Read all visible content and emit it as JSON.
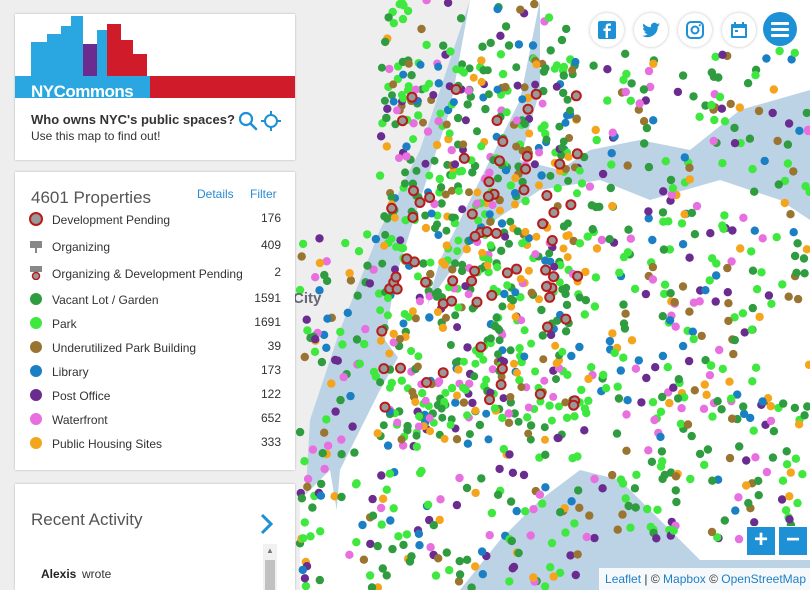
{
  "header": {
    "logo_text": "NYCommons",
    "tagline": "Who owns NYC's public spaces?",
    "subtagline": "Use this map to find out!"
  },
  "map": {
    "place_label": "City",
    "colors": {
      "water": "#bcd3e6",
      "land": "#ffffff",
      "land_dark": "#efefef",
      "vacant_lot": "#2e9c3f",
      "park": "#3ee83e",
      "underutilized": "#9a7431",
      "library": "#1a7fc3",
      "post_office": "#6b2c8f",
      "waterfront": "#e76fe0",
      "public_housing": "#f4a51c",
      "development_pending": "#b71c1c"
    }
  },
  "properties": {
    "title": "4601 Properties",
    "details_label": "Details",
    "filter_label": "Filter",
    "legend": [
      {
        "label": "Development Pending",
        "count": "176",
        "icon": "development-pending-icon",
        "color": "#b71c1c"
      },
      {
        "label": "Organizing",
        "count": "409",
        "icon": "organizing-sign-icon",
        "color": "#888888"
      },
      {
        "label": "Organizing & Development Pending",
        "count": "2",
        "icon": "organizing-development-icon",
        "color": "#b71c1c"
      },
      {
        "label": "Vacant Lot / Garden",
        "count": "1591",
        "icon": "vacant-lot-dot-icon",
        "color": "#2e9c3f"
      },
      {
        "label": "Park",
        "count": "1691",
        "icon": "park-dot-icon",
        "color": "#3ee83e"
      },
      {
        "label": "Underutilized Park Building",
        "count": "39",
        "icon": "underutilized-park-building-dot-icon",
        "color": "#9a7431"
      },
      {
        "label": "Library",
        "count": "173",
        "icon": "library-dot-icon",
        "color": "#1a7fc3"
      },
      {
        "label": "Post Office",
        "count": "122",
        "icon": "post-office-dot-icon",
        "color": "#6b2c8f"
      },
      {
        "label": "Waterfront",
        "count": "652",
        "icon": "waterfront-dot-icon",
        "color": "#e76fe0"
      },
      {
        "label": "Public Housing Sites",
        "count": "333",
        "icon": "public-housing-dot-icon",
        "color": "#f4a51c"
      }
    ]
  },
  "activity": {
    "title": "Recent Activity",
    "author": "Alexis",
    "action": "wrote"
  },
  "social": [
    "facebook-icon",
    "twitter-icon",
    "instagram-icon",
    "calendar-icon",
    "menu-icon"
  ],
  "attribution": {
    "leaflet": "Leaflet",
    "separator": "| ©",
    "mapbox": "Mapbox",
    "copy": "©",
    "osm": "OpenStreetMap"
  },
  "zoom": {
    "in": "+",
    "out": "−"
  }
}
